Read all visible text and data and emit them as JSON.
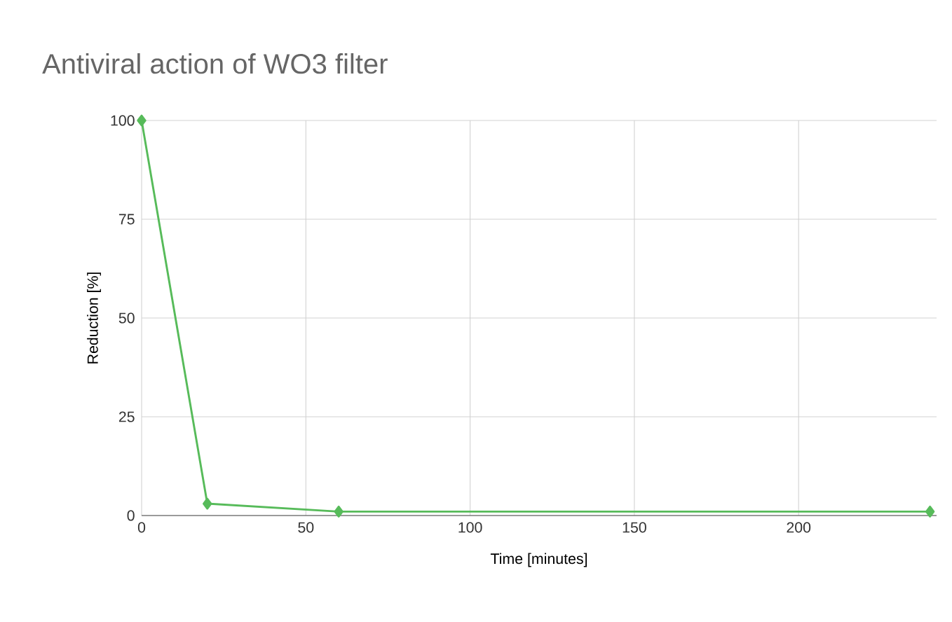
{
  "chart_data": {
    "type": "line",
    "title": "Antiviral action of WO3 filter",
    "xlabel": "Time [minutes]",
    "ylabel": "Reduction [%]",
    "x": [
      0,
      20,
      60,
      240
    ],
    "series": [
      {
        "color": "#57bb5a",
        "values": [
          100,
          3,
          1,
          1
        ]
      }
    ],
    "xlim": [
      0,
      242
    ],
    "xticks": [
      0,
      50,
      100,
      150,
      200
    ],
    "ylim": [
      0,
      100
    ],
    "yticks": [
      0,
      25,
      50,
      75,
      100
    ],
    "grid": true,
    "marker": "diamond",
    "line_style": "solid"
  }
}
